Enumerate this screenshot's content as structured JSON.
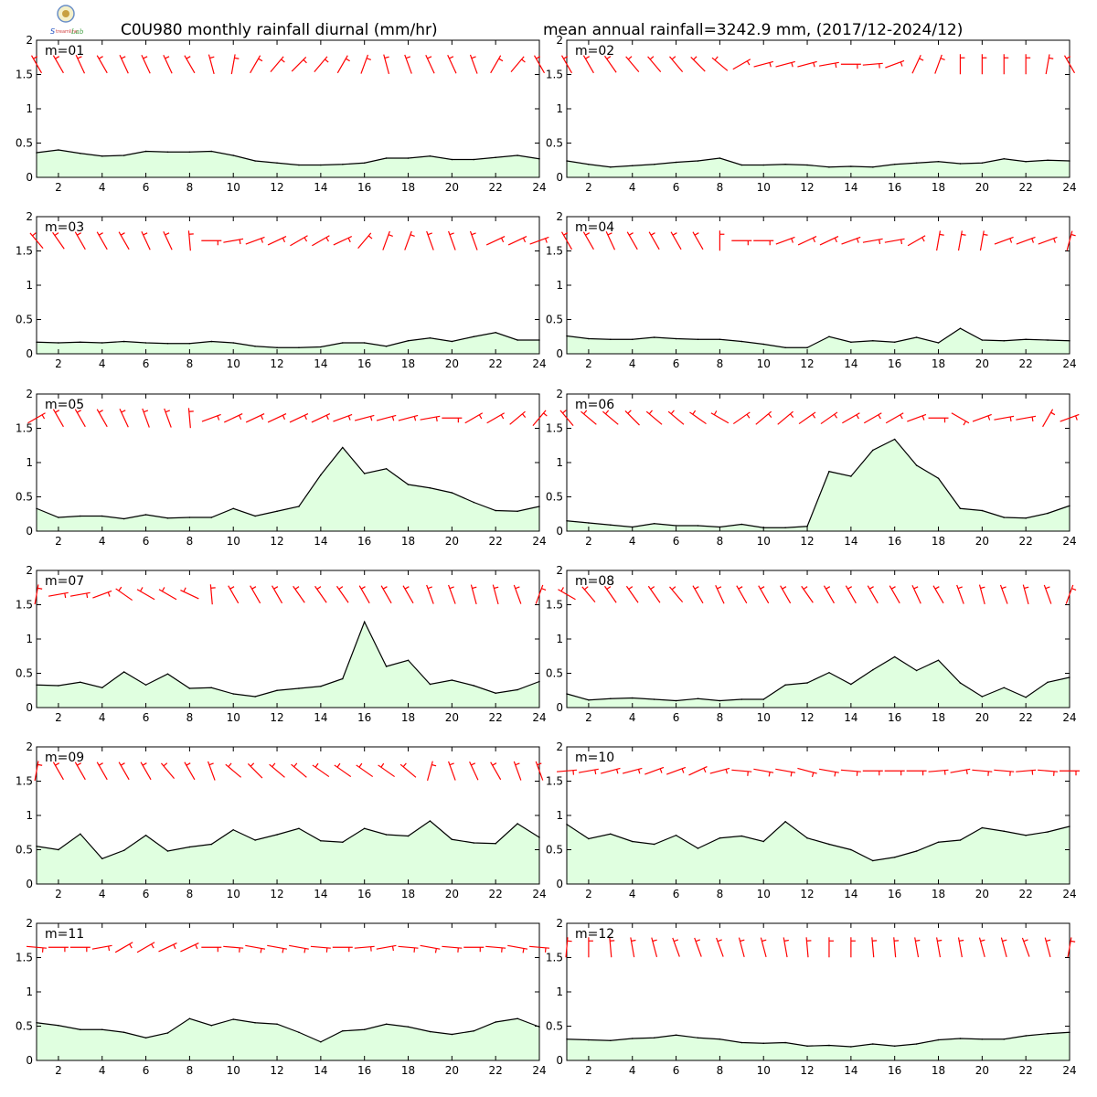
{
  "title_left": "C0U980 monthly rainfall diurnal (mm/hr)",
  "title_right": "mean annual rainfall=3242.9 mm, (2017/12-2024/12)",
  "chart_data": [
    {
      "type": "area",
      "label": "m=01",
      "x": [
        1,
        2,
        3,
        4,
        5,
        6,
        7,
        8,
        9,
        10,
        11,
        12,
        13,
        14,
        15,
        16,
        17,
        18,
        19,
        20,
        21,
        22,
        23,
        24
      ],
      "ylim": [
        0,
        2
      ],
      "xlim": [
        1,
        24
      ],
      "yticks": [
        "0",
        "0.5",
        "1",
        "1.5",
        "2"
      ],
      "xticks": [
        "2",
        "4",
        "6",
        "8",
        "10",
        "12",
        "14",
        "16",
        "18",
        "20",
        "22",
        "24"
      ],
      "values": [
        0.36,
        0.4,
        0.35,
        0.31,
        0.32,
        0.38,
        0.37,
        0.37,
        0.38,
        0.32,
        0.24,
        0.21,
        0.18,
        0.18,
        0.19,
        0.21,
        0.28,
        0.28,
        0.31,
        0.26,
        0.26,
        0.29,
        0.32,
        0.27
      ],
      "wind_dir": [
        330,
        330,
        335,
        330,
        335,
        335,
        335,
        330,
        345,
        10,
        30,
        40,
        45,
        40,
        30,
        20,
        345,
        340,
        335,
        335,
        340,
        30,
        40,
        330
      ]
    },
    {
      "type": "area",
      "label": "m=02",
      "x": [
        1,
        2,
        3,
        4,
        5,
        6,
        7,
        8,
        9,
        10,
        11,
        12,
        13,
        14,
        15,
        16,
        17,
        18,
        19,
        20,
        21,
        22,
        23,
        24
      ],
      "ylim": [
        0,
        2
      ],
      "xlim": [
        1,
        24
      ],
      "yticks": [
        "0",
        "0.5",
        "1",
        "1.5",
        "2"
      ],
      "xticks": [
        "2",
        "4",
        "6",
        "8",
        "10",
        "12",
        "14",
        "16",
        "18",
        "20",
        "22",
        "24"
      ],
      "values": [
        0.24,
        0.19,
        0.15,
        0.17,
        0.19,
        0.22,
        0.24,
        0.28,
        0.18,
        0.18,
        0.19,
        0.18,
        0.15,
        0.16,
        0.15,
        0.19,
        0.21,
        0.23,
        0.2,
        0.21,
        0.27,
        0.23,
        0.25,
        0.24
      ],
      "wind_dir": [
        330,
        330,
        325,
        320,
        320,
        320,
        315,
        310,
        60,
        75,
        75,
        75,
        80,
        90,
        85,
        70,
        25,
        20,
        0,
        0,
        0,
        0,
        10,
        330
      ]
    },
    {
      "type": "area",
      "label": "m=03",
      "x": [
        1,
        2,
        3,
        4,
        5,
        6,
        7,
        8,
        9,
        10,
        11,
        12,
        13,
        14,
        15,
        16,
        17,
        18,
        19,
        20,
        21,
        22,
        23,
        24
      ],
      "ylim": [
        0,
        2
      ],
      "xlim": [
        1,
        24
      ],
      "yticks": [
        "0",
        "0.5",
        "1",
        "1.5",
        "2"
      ],
      "xticks": [
        "2",
        "4",
        "6",
        "8",
        "10",
        "12",
        "14",
        "16",
        "18",
        "20",
        "22",
        "24"
      ],
      "values": [
        0.17,
        0.16,
        0.17,
        0.16,
        0.18,
        0.16,
        0.15,
        0.15,
        0.18,
        0.16,
        0.11,
        0.09,
        0.09,
        0.1,
        0.16,
        0.16,
        0.11,
        0.19,
        0.23,
        0.18,
        0.25,
        0.31,
        0.2,
        0.2
      ],
      "wind_dir": [
        320,
        325,
        330,
        330,
        330,
        335,
        335,
        355,
        90,
        80,
        70,
        65,
        60,
        60,
        65,
        40,
        20,
        20,
        340,
        340,
        340,
        65,
        65,
        70
      ]
    },
    {
      "type": "area",
      "label": "m=04",
      "x": [
        1,
        2,
        3,
        4,
        5,
        6,
        7,
        8,
        9,
        10,
        11,
        12,
        13,
        14,
        15,
        16,
        17,
        18,
        19,
        20,
        21,
        22,
        23,
        24
      ],
      "ylim": [
        0,
        2
      ],
      "xlim": [
        1,
        24
      ],
      "yticks": [
        "0",
        "0.5",
        "1",
        "1.5",
        "2"
      ],
      "xticks": [
        "2",
        "4",
        "6",
        "8",
        "10",
        "12",
        "14",
        "16",
        "18",
        "20",
        "22",
        "24"
      ],
      "values": [
        0.26,
        0.22,
        0.21,
        0.21,
        0.24,
        0.22,
        0.21,
        0.21,
        0.18,
        0.14,
        0.09,
        0.09,
        0.25,
        0.17,
        0.19,
        0.17,
        0.24,
        0.16,
        0.37,
        0.2,
        0.19,
        0.21,
        0.2,
        0.19
      ],
      "wind_dir": [
        330,
        330,
        335,
        330,
        330,
        330,
        330,
        360,
        90,
        90,
        70,
        65,
        65,
        70,
        80,
        80,
        60,
        10,
        10,
        10,
        70,
        70,
        70,
        15
      ]
    },
    {
      "type": "area",
      "label": "m=05",
      "x": [
        1,
        2,
        3,
        4,
        5,
        6,
        7,
        8,
        9,
        10,
        11,
        12,
        13,
        14,
        15,
        16,
        17,
        18,
        19,
        20,
        21,
        22,
        23,
        24
      ],
      "ylim": [
        0,
        2
      ],
      "xlim": [
        1,
        24
      ],
      "yticks": [
        "0",
        "0.5",
        "1",
        "1.5",
        "2"
      ],
      "xticks": [
        "2",
        "4",
        "6",
        "8",
        "10",
        "12",
        "14",
        "16",
        "18",
        "20",
        "22",
        "24"
      ],
      "values": [
        0.33,
        0.2,
        0.22,
        0.22,
        0.18,
        0.24,
        0.19,
        0.2,
        0.2,
        0.33,
        0.22,
        0.29,
        0.36,
        0.82,
        1.22,
        0.84,
        0.91,
        0.68,
        0.63,
        0.56,
        0.42,
        0.3,
        0.29,
        0.36
      ],
      "wind_dir": [
        60,
        330,
        330,
        330,
        335,
        340,
        340,
        355,
        70,
        65,
        65,
        65,
        65,
        65,
        70,
        75,
        75,
        75,
        80,
        90,
        60,
        60,
        50,
        40
      ]
    },
    {
      "type": "area",
      "label": "m=06",
      "x": [
        1,
        2,
        3,
        4,
        5,
        6,
        7,
        8,
        9,
        10,
        11,
        12,
        13,
        14,
        15,
        16,
        17,
        18,
        19,
        20,
        21,
        22,
        23,
        24
      ],
      "ylim": [
        0,
        2
      ],
      "xlim": [
        1,
        24
      ],
      "yticks": [
        "0",
        "0.5",
        "1",
        "1.5",
        "2"
      ],
      "xticks": [
        "2",
        "4",
        "6",
        "8",
        "10",
        "12",
        "14",
        "16",
        "18",
        "20",
        "22",
        "24"
      ],
      "values": [
        0.15,
        0.12,
        0.09,
        0.06,
        0.11,
        0.08,
        0.08,
        0.06,
        0.1,
        0.05,
        0.05,
        0.07,
        0.87,
        0.8,
        1.18,
        1.34,
        0.96,
        0.77,
        0.33,
        0.3,
        0.2,
        0.19,
        0.26,
        0.37
      ],
      "wind_dir": [
        320,
        310,
        310,
        315,
        310,
        310,
        305,
        300,
        55,
        50,
        50,
        55,
        55,
        60,
        60,
        60,
        70,
        90,
        120,
        70,
        80,
        80,
        30,
        70
      ]
    },
    {
      "type": "area",
      "label": "m=07",
      "x": [
        1,
        2,
        3,
        4,
        5,
        6,
        7,
        8,
        9,
        10,
        11,
        12,
        13,
        14,
        15,
        16,
        17,
        18,
        19,
        20,
        21,
        22,
        23,
        24
      ],
      "ylim": [
        0,
        2
      ],
      "xlim": [
        1,
        24
      ],
      "yticks": [
        "0",
        "0.5",
        "1",
        "1.5",
        "2"
      ],
      "xticks": [
        "2",
        "4",
        "6",
        "8",
        "10",
        "12",
        "14",
        "16",
        "18",
        "20",
        "22",
        "24"
      ],
      "values": [
        0.33,
        0.32,
        0.37,
        0.29,
        0.52,
        0.33,
        0.49,
        0.28,
        0.29,
        0.2,
        0.16,
        0.25,
        0.28,
        0.31,
        0.42,
        1.25,
        0.6,
        0.69,
        0.34,
        0.4,
        0.32,
        0.21,
        0.26,
        0.38
      ],
      "wind_dir": [
        10,
        80,
        80,
        70,
        305,
        300,
        300,
        295,
        355,
        330,
        330,
        330,
        325,
        325,
        325,
        330,
        330,
        330,
        340,
        340,
        345,
        345,
        340,
        20
      ]
    },
    {
      "type": "area",
      "label": "m=08",
      "x": [
        1,
        2,
        3,
        4,
        5,
        6,
        7,
        8,
        9,
        10,
        11,
        12,
        13,
        14,
        15,
        16,
        17,
        18,
        19,
        20,
        21,
        22,
        23,
        24
      ],
      "ylim": [
        0,
        2
      ],
      "xlim": [
        1,
        24
      ],
      "yticks": [
        "0",
        "0.5",
        "1",
        "1.5",
        "2"
      ],
      "xticks": [
        "2",
        "4",
        "6",
        "8",
        "10",
        "12",
        "14",
        "16",
        "18",
        "20",
        "22",
        "24"
      ],
      "values": [
        0.2,
        0.11,
        0.13,
        0.14,
        0.12,
        0.1,
        0.13,
        0.1,
        0.12,
        0.12,
        0.33,
        0.36,
        0.51,
        0.34,
        0.55,
        0.74,
        0.54,
        0.69,
        0.36,
        0.16,
        0.29,
        0.15,
        0.37,
        0.44
      ],
      "wind_dir": [
        300,
        320,
        325,
        325,
        325,
        320,
        330,
        335,
        330,
        330,
        330,
        325,
        330,
        330,
        330,
        330,
        335,
        330,
        340,
        345,
        340,
        345,
        340,
        20
      ]
    },
    {
      "type": "area",
      "label": "m=09",
      "x": [
        1,
        2,
        3,
        4,
        5,
        6,
        7,
        8,
        9,
        10,
        11,
        12,
        13,
        14,
        15,
        16,
        17,
        18,
        19,
        20,
        21,
        22,
        23,
        24
      ],
      "ylim": [
        0,
        2
      ],
      "xlim": [
        1,
        24
      ],
      "yticks": [
        "0",
        "0.5",
        "1",
        "1.5",
        "2"
      ],
      "xticks": [
        "2",
        "4",
        "6",
        "8",
        "10",
        "12",
        "14",
        "16",
        "18",
        "20",
        "22",
        "24"
      ],
      "values": [
        0.55,
        0.5,
        0.73,
        0.37,
        0.49,
        0.71,
        0.48,
        0.54,
        0.58,
        0.79,
        0.64,
        0.72,
        0.81,
        0.63,
        0.61,
        0.81,
        0.72,
        0.7,
        0.92,
        0.65,
        0.6,
        0.59,
        0.88,
        0.68
      ],
      "wind_dir": [
        10,
        330,
        330,
        330,
        330,
        330,
        320,
        330,
        340,
        310,
        315,
        310,
        310,
        305,
        305,
        305,
        305,
        310,
        15,
        340,
        335,
        330,
        340,
        340
      ]
    },
    {
      "type": "area",
      "label": "m=10",
      "x": [
        1,
        2,
        3,
        4,
        5,
        6,
        7,
        8,
        9,
        10,
        11,
        12,
        13,
        14,
        15,
        16,
        17,
        18,
        19,
        20,
        21,
        22,
        23,
        24
      ],
      "ylim": [
        0,
        2
      ],
      "xlim": [
        1,
        24
      ],
      "yticks": [
        "0",
        "0.5",
        "1",
        "1.5",
        "2"
      ],
      "xticks": [
        "2",
        "4",
        "6",
        "8",
        "10",
        "12",
        "14",
        "16",
        "18",
        "20",
        "22",
        "24"
      ],
      "values": [
        0.87,
        0.66,
        0.73,
        0.62,
        0.58,
        0.71,
        0.52,
        0.67,
        0.7,
        0.62,
        0.91,
        0.67,
        0.58,
        0.5,
        0.34,
        0.39,
        0.48,
        0.61,
        0.64,
        0.82,
        0.77,
        0.71,
        0.76,
        0.84
      ],
      "wind_dir": [
        85,
        80,
        75,
        75,
        70,
        70,
        65,
        75,
        95,
        100,
        100,
        105,
        100,
        95,
        90,
        90,
        90,
        85,
        80,
        95,
        95,
        85,
        95,
        90
      ]
    },
    {
      "type": "area",
      "label": "m=11",
      "x": [
        1,
        2,
        3,
        4,
        5,
        6,
        7,
        8,
        9,
        10,
        11,
        12,
        13,
        14,
        15,
        16,
        17,
        18,
        19,
        20,
        21,
        22,
        23,
        24
      ],
      "ylim": [
        0,
        2
      ],
      "xlim": [
        1,
        24
      ],
      "yticks": [
        "0",
        "0.5",
        "1",
        "1.5",
        "2"
      ],
      "xticks": [
        "2",
        "4",
        "6",
        "8",
        "10",
        "12",
        "14",
        "16",
        "18",
        "20",
        "22",
        "24"
      ],
      "values": [
        0.55,
        0.51,
        0.45,
        0.45,
        0.41,
        0.33,
        0.4,
        0.61,
        0.51,
        0.6,
        0.55,
        0.53,
        0.41,
        0.27,
        0.43,
        0.45,
        0.53,
        0.49,
        0.42,
        0.38,
        0.43,
        0.56,
        0.61,
        0.49
      ],
      "wind_dir": [
        95,
        90,
        90,
        80,
        60,
        60,
        65,
        65,
        90,
        95,
        100,
        100,
        100,
        95,
        90,
        85,
        80,
        95,
        100,
        95,
        90,
        95,
        100,
        95
      ]
    },
    {
      "type": "area",
      "label": "m=12",
      "x": [
        1,
        2,
        3,
        4,
        5,
        6,
        7,
        8,
        9,
        10,
        11,
        12,
        13,
        14,
        15,
        16,
        17,
        18,
        19,
        20,
        21,
        22,
        23,
        24
      ],
      "ylim": [
        0,
        2
      ],
      "xlim": [
        1,
        24
      ],
      "yticks": [
        "0",
        "0.5",
        "1",
        "1.5",
        "2"
      ],
      "xticks": [
        "2",
        "4",
        "6",
        "8",
        "10",
        "12",
        "14",
        "16",
        "18",
        "20",
        "22",
        "24"
      ],
      "values": [
        0.31,
        0.3,
        0.29,
        0.32,
        0.33,
        0.37,
        0.33,
        0.31,
        0.26,
        0.25,
        0.26,
        0.21,
        0.22,
        0.2,
        0.24,
        0.21,
        0.24,
        0.3,
        0.32,
        0.31,
        0.31,
        0.36,
        0.39,
        0.41
      ],
      "wind_dir": [
        5,
        0,
        355,
        350,
        345,
        340,
        340,
        340,
        345,
        345,
        350,
        355,
        0,
        0,
        355,
        355,
        350,
        350,
        350,
        345,
        345,
        340,
        345,
        10
      ]
    }
  ],
  "colors": {
    "fill": "#e0ffe0",
    "line": "#000000",
    "wind": "#ff0000",
    "frame": "#000000"
  },
  "logo": {
    "name": "emblem-logo",
    "lettering": "Lab"
  }
}
